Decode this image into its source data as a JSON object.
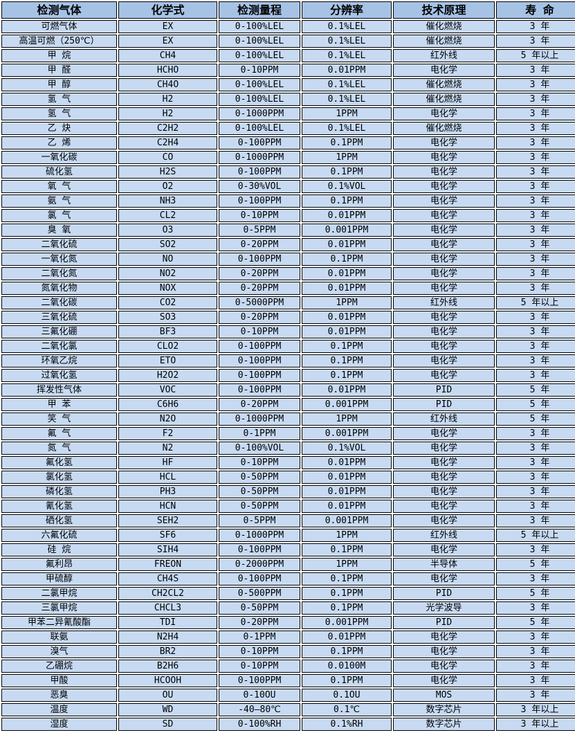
{
  "table": {
    "title": "gas-sensor-specifications",
    "colors": {
      "header_bg": "#a6c3e6",
      "row_bg": "#c7daf2",
      "border": "#000000",
      "gap": "#ffffff",
      "text": "#000000"
    },
    "headers": [
      "检测气体",
      "化学式",
      "检测量程",
      "分辨率",
      "技术原理",
      "寿 命"
    ],
    "rows": [
      [
        "可燃气体",
        "EX",
        "0-100%LEL",
        "0.1%LEL",
        "催化燃烧",
        "3 年"
      ],
      [
        "高温可燃（250℃）",
        "EX",
        "0-100%LEL",
        "0.1%LEL",
        "催化燃烧",
        "3 年"
      ],
      [
        "甲 烷",
        "CH4",
        "0-100%LEL",
        "0.1%LEL",
        "红外线",
        "5 年以上"
      ],
      [
        "甲 醛",
        "HCHO",
        "0-10PPM",
        "0.01PPM",
        "电化学",
        "3 年"
      ],
      [
        "甲 醇",
        "CH4O",
        "0-100%LEL",
        "0.1%LEL",
        "催化燃烧",
        "3 年"
      ],
      [
        "氢 气",
        "H2",
        "0-100%LEL",
        "0.1%LEL",
        "催化燃烧",
        "3 年"
      ],
      [
        "氢 气",
        "H2",
        "0-1000PPM",
        "1PPM",
        "电化学",
        "3 年"
      ],
      [
        "乙 炔",
        "C2H2",
        "0-100%LEL",
        "0.1%LEL",
        "催化燃烧",
        "3 年"
      ],
      [
        "乙 烯",
        "C2H4",
        "0-100PPM",
        "0.1PPM",
        "电化学",
        "3 年"
      ],
      [
        "一氧化碳",
        "CO",
        "0-1000PPM",
        "1PPM",
        "电化学",
        "3 年"
      ],
      [
        "硫化氢",
        "H2S",
        "0-100PPM",
        "0.1PPM",
        "电化学",
        "3 年"
      ],
      [
        "氧 气",
        "O2",
        "0-30%VOL",
        "0.1%VOL",
        "电化学",
        "3 年"
      ],
      [
        "氨 气",
        "NH3",
        "0-100PPM",
        "0.1PPM",
        "电化学",
        "3 年"
      ],
      [
        "氯 气",
        "CL2",
        "0-10PPM",
        "0.01PPM",
        "电化学",
        "3 年"
      ],
      [
        "臭 氧",
        "O3",
        "0-5PPM",
        "0.001PPM",
        "电化学",
        "3 年"
      ],
      [
        "二氧化硫",
        "SO2",
        "0-20PPM",
        "0.01PPM",
        "电化学",
        "3 年"
      ],
      [
        "一氧化氮",
        "NO",
        "0-100PPM",
        "0.1PPM",
        "电化学",
        "3 年"
      ],
      [
        "二氧化氮",
        "NO2",
        "0-20PPM",
        "0.01PPM",
        "电化学",
        "3 年"
      ],
      [
        "氮氧化物",
        "NOX",
        "0-20PPM",
        "0.01PPM",
        "电化学",
        "3 年"
      ],
      [
        "二氧化碳",
        "CO2",
        "0-5000PPM",
        "1PPM",
        "红外线",
        "5 年以上"
      ],
      [
        "三氧化硫",
        "SO3",
        "0-20PPM",
        "0.01PPM",
        "电化学",
        "3 年"
      ],
      [
        "三氟化硼",
        "BF3",
        "0-10PPM",
        "0.01PPM",
        "电化学",
        "3 年"
      ],
      [
        "二氧化氯",
        "CLO2",
        "0-100PPM",
        "0.1PPM",
        "电化学",
        "3 年"
      ],
      [
        "环氧乙烷",
        "ETO",
        "0-100PPM",
        "0.1PPM",
        "电化学",
        "3 年"
      ],
      [
        "过氧化氢",
        "H2O2",
        "0-100PPM",
        "0.1PPM",
        "电化学",
        "3 年"
      ],
      [
        "挥发性气体",
        "VOC",
        "0-100PPM",
        "0.01PPM",
        "PID",
        "5 年"
      ],
      [
        "甲 苯",
        "C6H6",
        "0-20PPM",
        "0.001PPM",
        "PID",
        "5 年"
      ],
      [
        "笑 气",
        "N2O",
        "0-1000PPM",
        "1PPM",
        "红外线",
        "5 年"
      ],
      [
        "氟 气",
        "F2",
        "0-1PPM",
        "0.001PPM",
        "电化学",
        "3 年"
      ],
      [
        "氮 气",
        "N2",
        "0-100%VOL",
        "0.1%VOL",
        "电化学",
        "3 年"
      ],
      [
        "氟化氢",
        "HF",
        "0-10PPM",
        "0.01PPM",
        "电化学",
        "3 年"
      ],
      [
        "氯化氢",
        "HCL",
        "0-50PPM",
        "0.01PPM",
        "电化学",
        "3 年"
      ],
      [
        "磷化氢",
        "PH3",
        "0-50PPM",
        "0.01PPM",
        "电化学",
        "3 年"
      ],
      [
        "氰化氢",
        "HCN",
        "0-50PPM",
        "0.01PPM",
        "电化学",
        "3 年"
      ],
      [
        "硒化氢",
        "SEH2",
        "0-5PPM",
        "0.001PPM",
        "电化学",
        "3 年"
      ],
      [
        "六氟化硫",
        "SF6",
        "0-1000PPM",
        "1PPM",
        "红外线",
        "5 年以上"
      ],
      [
        "硅 烷",
        "SIH4",
        "0-100PPM",
        "0.1PPM",
        "电化学",
        "3 年"
      ],
      [
        "氟利昂",
        "FREON",
        "0-2000PPM",
        "1PPM",
        "半导体",
        "5 年"
      ],
      [
        "甲硫醇",
        "CH4S",
        "0-100PPM",
        "0.1PPM",
        "电化学",
        "3 年"
      ],
      [
        "二氯甲烷",
        "CH2CL2",
        "0-500PPM",
        "0.1PPM",
        "PID",
        "5 年"
      ],
      [
        "三氯甲烷",
        "CHCL3",
        "0-50PPM",
        "0.1PPM",
        "光学波导",
        "3 年"
      ],
      [
        "甲苯二异氰酸酯",
        "TDI",
        "0-20PPM",
        "0.001PPM",
        "PID",
        "5 年"
      ],
      [
        "联氨",
        "N2H4",
        "0-1PPM",
        "0.01PPM",
        "电化学",
        "3 年"
      ],
      [
        "溴气",
        "BR2",
        "0-10PPM",
        "0.1PPM",
        "电化学",
        "3 年"
      ],
      [
        "乙硼烷",
        "B2H6",
        "0-10PPM",
        "0.0100M",
        "电化学",
        "3 年"
      ],
      [
        "甲酸",
        "HCOOH",
        "0-100PPM",
        "0.1PPM",
        "电化学",
        "3 年"
      ],
      [
        "恶臭",
        "OU",
        "0-10OU",
        "0.1OU",
        "MOS",
        "3 年"
      ],
      [
        "温度",
        "WD",
        "-40—80℃",
        "0.1℃",
        "数字芯片",
        "3 年以上"
      ],
      [
        "湿度",
        "SD",
        "0-100%RH",
        "0.1%RH",
        "数字芯片",
        "3 年以上"
      ]
    ]
  }
}
